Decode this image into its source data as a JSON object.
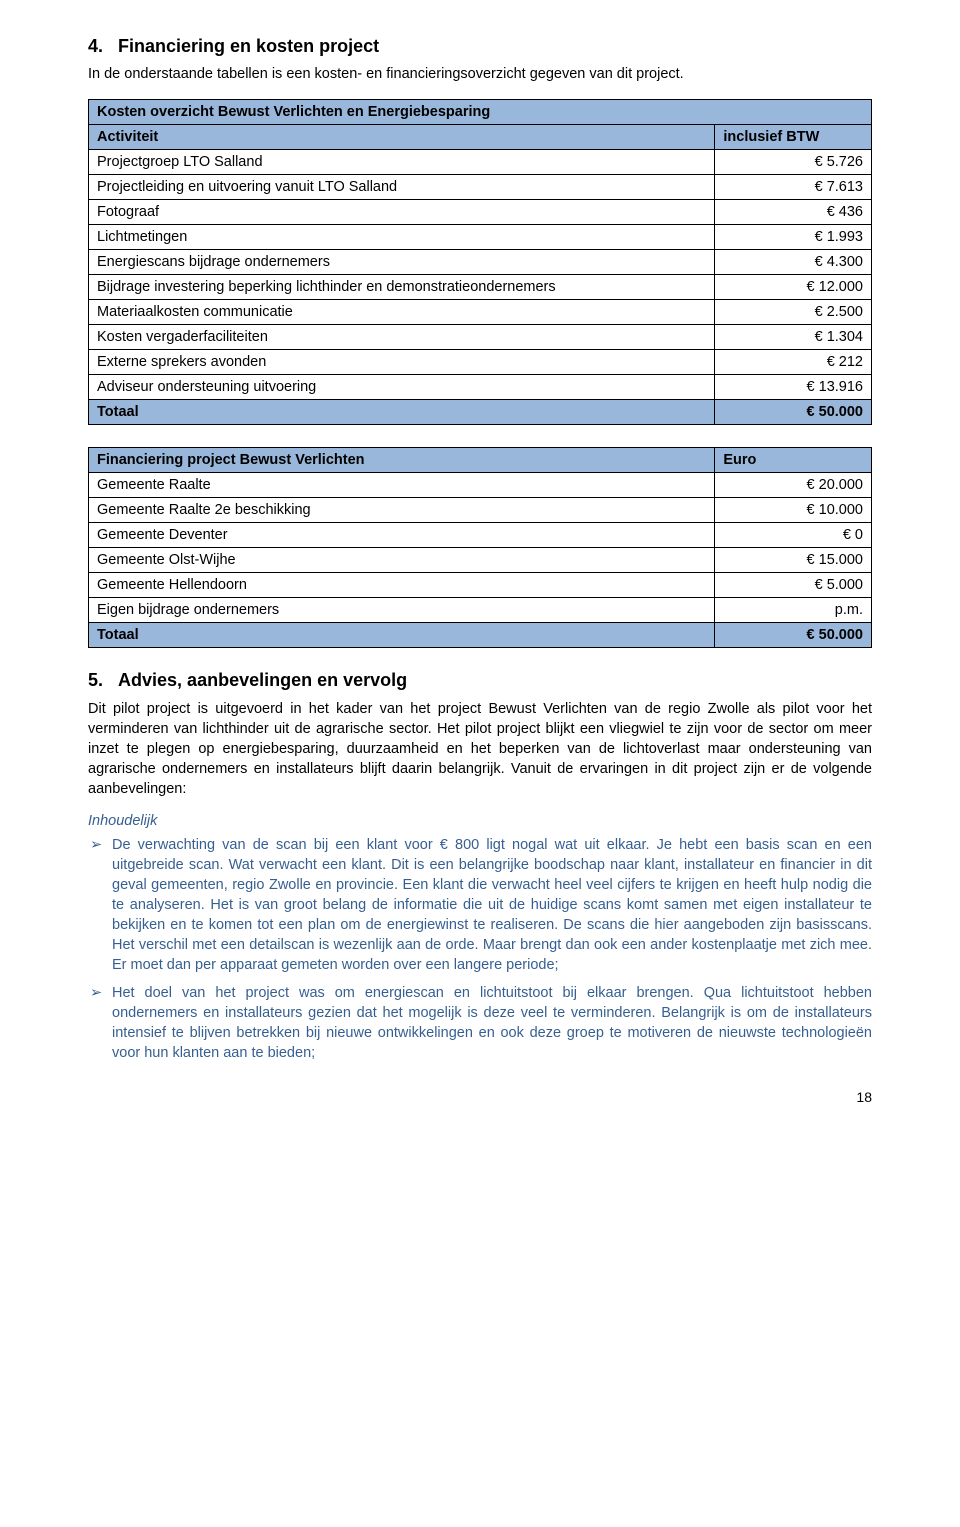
{
  "sections": {
    "s1": {
      "number": "4.",
      "title": "Financiering en kosten project"
    },
    "s2": {
      "number": "5.",
      "title": "Advies, aanbevelingen en vervolg"
    }
  },
  "intro1": "In de onderstaande tabellen is een kosten- en financieringsoverzicht gegeven van dit project.",
  "table1": {
    "title": "Kosten overzicht Bewust Verlichten en Energiebesparing",
    "col_label": "Activiteit",
    "col_value": "inclusief BTW",
    "rows": [
      {
        "label": "Projectgroep LTO Salland",
        "value": "€ 5.726"
      },
      {
        "label": "Projectleiding en uitvoering vanuit LTO Salland",
        "value": "€ 7.613"
      },
      {
        "label": "Fotograaf",
        "value": "€ 436"
      },
      {
        "label": "Lichtmetingen",
        "value": "€ 1.993"
      },
      {
        "label": "Energiescans bijdrage ondernemers",
        "value": "€ 4.300"
      },
      {
        "label": "Bijdrage investering beperking lichthinder en demonstratieondernemers",
        "value": "€ 12.000"
      },
      {
        "label": "Materiaalkosten communicatie",
        "value": "€ 2.500"
      },
      {
        "label": "Kosten vergaderfaciliteiten",
        "value": "€ 1.304"
      },
      {
        "label": "Externe sprekers avonden",
        "value": "€ 212"
      },
      {
        "label": "Adviseur ondersteuning uitvoering",
        "value": "€ 13.916"
      }
    ],
    "total_label": "Totaal",
    "total_value": "€ 50.000"
  },
  "table2": {
    "title": "Financiering project Bewust Verlichten",
    "col_value": "Euro",
    "rows": [
      {
        "label": "Gemeente Raalte",
        "value": "€ 20.000"
      },
      {
        "label": "Gemeente Raalte 2e beschikking",
        "value": "€ 10.000"
      },
      {
        "label": "Gemeente Deventer",
        "value": "€ 0"
      },
      {
        "label": "Gemeente Olst-Wijhe",
        "value": "€ 15.000"
      },
      {
        "label": "Gemeente Hellendoorn",
        "value": "€ 5.000"
      },
      {
        "label": "Eigen bijdrage ondernemers",
        "value": "p.m."
      }
    ],
    "total_label": "Totaal",
    "total_value": "€ 50.000"
  },
  "para_advice": "Dit pilot project is uitgevoerd in het kader van het project Bewust Verlichten van de regio Zwolle als pilot voor het verminderen van lichthinder uit de agrarische sector. Het pilot project blijkt een vliegwiel te zijn voor de sector om meer inzet te plegen op energiebesparing, duurzaamheid en het beperken van de lichtoverlast maar ondersteuning van agrarische ondernemers en installateurs blijft daarin belangrijk. Vanuit de ervaringen in dit project zijn er de volgende aanbevelingen:",
  "subhead": "Inhoudelijk",
  "bullets": [
    "De verwachting van de scan bij een klant voor € 800 ligt nogal wat uit elkaar. Je hebt een basis scan en een uitgebreide scan. Wat verwacht een klant. Dit is een belangrijke boodschap naar klant, installateur en financier in dit geval gemeenten, regio Zwolle en provincie. Een klant die verwacht heel veel cijfers te krijgen en heeft hulp nodig die te analyseren. Het is van groot belang de informatie die uit de huidige scans komt samen met eigen installateur te bekijken en te komen tot een plan om de energiewinst te realiseren. De scans die hier aangeboden zijn basisscans. Het verschil met een detailscan is wezenlijk aan de orde. Maar brengt dan ook een ander kostenplaatje met zich mee. Er moet dan per apparaat gemeten worden over een langere periode;",
    "Het doel van het project was om energiescan en lichtuitstoot bij elkaar brengen. Qua lichtuitstoot hebben ondernemers en installateurs gezien dat het mogelijk is deze veel te verminderen. Belangrijk is om de installateurs intensief te blijven betrekken bij nieuwe ontwikkelingen en ook deze groep te motiveren de nieuwste technologieën voor hun klanten aan te bieden;"
  ],
  "page_number": "18",
  "col_widths": {
    "label_pct": "80%",
    "value_pct": "20%"
  }
}
